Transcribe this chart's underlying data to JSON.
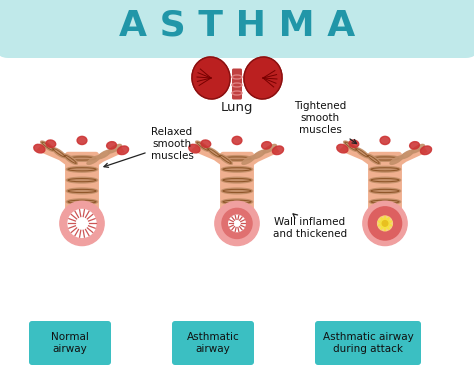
{
  "title": "A S T H M A",
  "title_fontsize": 26,
  "title_color": "#2196a8",
  "bg_outer": "#a8dfe0",
  "bg_inner": "#ffffff",
  "lung_label": "Lung",
  "labels": {
    "normal": "Normal\nairway",
    "asthmatic": "Asthmatic\nairway",
    "attack": "Asthmatic airway\nduring attack",
    "relaxed": "Relaxed\nsmooth\nmuscles",
    "tightened": "Tightened\nsmooth\nmuscles",
    "wall": "Wall inflamed\nand thickened"
  },
  "label_bg": "#3bbfc2",
  "label_fg": "#111111",
  "annotation_color": "#111111",
  "cross_section_colors": {
    "normal_outer": "#f0a0a0",
    "normal_folds": "#cc5555",
    "asthmatic_wall": "#e07070",
    "attack_wall": "#dd6060",
    "attack_inner": "#f8d080",
    "attack_center": "#f0e000"
  },
  "bronchi_color": "#cc3333",
  "body_color": "#f0b090",
  "muscle_ring_color": "#c4906a",
  "muscle_ring_dark": "#7a4010"
}
